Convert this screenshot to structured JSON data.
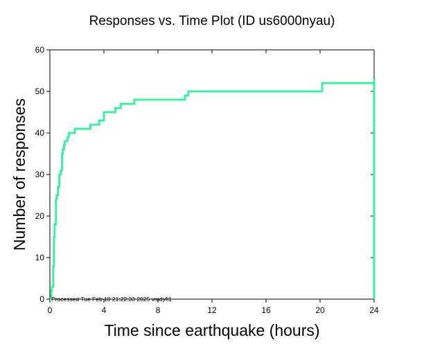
{
  "chart_data": {
    "type": "line",
    "title": "Responses vs. Time Plot (ID us6000nyau)",
    "xlabel": "Time since earthquake (hours)",
    "ylabel": "Number of responses",
    "xlim": [
      0,
      24
    ],
    "ylim": [
      0,
      60
    ],
    "xticks": [
      "0",
      "4",
      "8",
      "12",
      "16",
      "20",
      "24"
    ],
    "yticks": [
      "0",
      "10",
      "20",
      "30",
      "40",
      "50",
      "60"
    ],
    "grid": false,
    "line_color": "#3cf0a0",
    "annotation": "Processed Tue Feb 18 21:22:33 2025 vmdyfi1",
    "series": [
      {
        "step": true,
        "x": [
          0,
          0.1,
          0.15,
          0.25,
          0.3,
          0.35,
          0.45,
          0.5,
          0.55,
          0.6,
          0.7,
          0.8,
          0.9,
          0.95,
          1.05,
          1.1,
          1.2,
          1.3,
          1.4,
          1.55,
          1.85,
          2.3,
          3.0,
          3.65,
          4.0,
          4.3,
          4.85,
          5.25,
          6.25,
          10.0,
          10.25,
          20.15,
          24.0,
          24.0
        ],
        "y": [
          0,
          2,
          3,
          8,
          15,
          18,
          24,
          25,
          25,
          27,
          30,
          31,
          35,
          36,
          37,
          38,
          38,
          39,
          40,
          40,
          41,
          41,
          42,
          43,
          45,
          45,
          46,
          47,
          48,
          49,
          50,
          52,
          53,
          0
        ]
      }
    ]
  }
}
